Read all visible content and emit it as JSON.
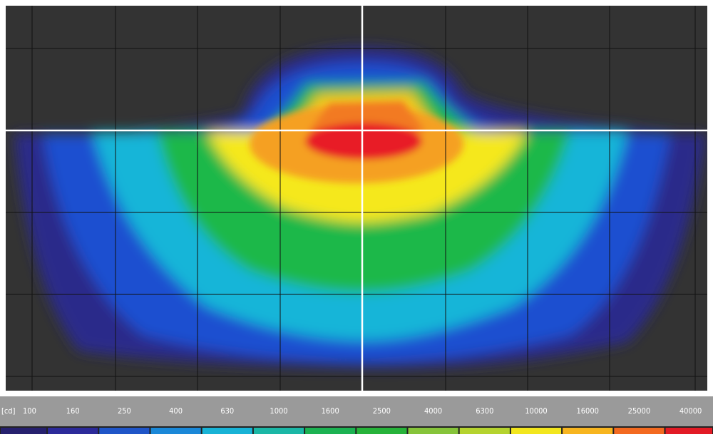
{
  "scale": {
    "unit": "[cd]",
    "ticks": [
      100,
      160,
      250,
      400,
      630,
      1000,
      1600,
      2500,
      4000,
      6300,
      10000,
      16000,
      25000,
      40000
    ],
    "colors": [
      "#26206e",
      "#2c2a9a",
      "#1f55c8",
      "#1a88d8",
      "#18b3d6",
      "#1bb7a6",
      "#1cb252",
      "#27b33a",
      "#86c43a",
      "#b5d32e",
      "#f2e61d",
      "#f7b51f",
      "#f36a20",
      "#e21b25"
    ]
  }
}
